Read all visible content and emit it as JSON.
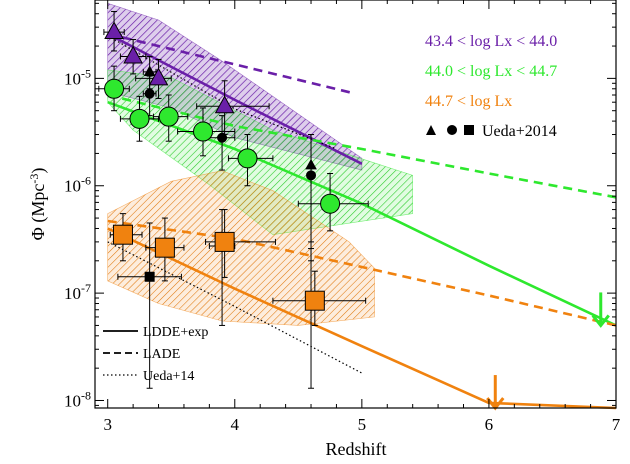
{
  "chart_data": {
    "type": "scatter",
    "xlabel": "Redshift",
    "ylabel_main": "Φ (Mpc",
    "ylabel_sup": "-3",
    "ylabel_close": ")",
    "xlim": [
      2.9,
      7.0
    ],
    "ylog": true,
    "ylim_log10": [
      -8.07,
      -4.27
    ],
    "x_ticks": [
      {
        "v": 3,
        "label": "3"
      },
      {
        "v": 4,
        "label": "4"
      },
      {
        "v": 5,
        "label": "5"
      },
      {
        "v": 6,
        "label": "6"
      },
      {
        "v": 7,
        "label": "7"
      }
    ],
    "y_ticks": [
      {
        "e": -5,
        "label": "10",
        "sup": "-5"
      },
      {
        "e": -6,
        "label": "10",
        "sup": "-6"
      },
      {
        "e": -7,
        "label": "10",
        "sup": "-7"
      },
      {
        "e": -8,
        "label": "10",
        "sup": "-8"
      }
    ],
    "legend_bins": [
      {
        "label": "43.4 < log Lx < 44.0",
        "color": "#6a1fa8"
      },
      {
        "label": "44.0 < log Lx < 44.7",
        "color": "#2ee82e"
      },
      {
        "label": "44.7 < log Lx",
        "color": "#f0820f"
      }
    ],
    "legend_ueda": {
      "label": "Ueda+2014"
    },
    "legend_lines": [
      {
        "label": "LDDE+exp",
        "dash": "solid"
      },
      {
        "label": "LADE",
        "dash": "dashed"
      },
      {
        "label": "Ueda+14",
        "dash": "dotted"
      }
    ],
    "series": [
      {
        "color": "#6a1fa8",
        "marker": "triangle",
        "points": [
          {
            "x": 3.05,
            "y": 2.7e-05,
            "xerr": [
              0.08,
              0.08
            ],
            "yerr": [
              1.8e-05,
              4.2e-05
            ]
          },
          {
            "x": 3.2,
            "y": 1.6e-05,
            "xerr": [
              0.1,
              0.1
            ],
            "yerr": [
              1.1e-05,
              2.3e-05
            ]
          },
          {
            "x": 3.4,
            "y": 1e-05,
            "xerr": [
              0.18,
              0.1
            ],
            "yerr": [
              6.5e-06,
              1.5e-05
            ]
          },
          {
            "x": 3.92,
            "y": 5.5e-06,
            "xerr": [
              0.22,
              0.35
            ],
            "yerr": [
              3e-06,
              9.5e-06
            ]
          }
        ],
        "model_ldde": [
          [
            3.0,
            2.6e-05
          ],
          [
            4.0,
            6.3e-06
          ],
          [
            5.0,
            1.6e-06
          ]
        ],
        "model_lade": [
          [
            3.0,
            2.6e-05
          ],
          [
            4.0,
            1.35e-05
          ],
          [
            4.95,
            7.2e-06
          ]
        ],
        "model_ueda": [
          [
            3.0,
            2.5e-05
          ],
          [
            4.0,
            5.2e-06
          ],
          [
            4.8,
            2.2e-06
          ]
        ],
        "band": [
          [
            3.0,
            5e-05
          ],
          [
            3.4,
            3.5e-05
          ],
          [
            3.9,
            1.45e-05
          ],
          [
            5.0,
            1.8e-06
          ],
          [
            5.0,
            1.4e-06
          ],
          [
            4.0,
            2.8e-06
          ],
          [
            3.5,
            5.3e-06
          ],
          [
            3.0,
            7.5e-06
          ]
        ]
      },
      {
        "color": "#2ee82e",
        "marker": "circle",
        "points": [
          {
            "x": 3.05,
            "y": 8e-06,
            "xerr": [
              0.12,
              0.12
            ],
            "yerr": [
              5e-06,
              1.3e-05
            ]
          },
          {
            "x": 3.25,
            "y": 4.2e-06,
            "xerr": [
              0.15,
              0.15
            ],
            "yerr": [
              2.6e-06,
              6.8e-06
            ]
          },
          {
            "x": 3.48,
            "y": 4.4e-06,
            "xerr": [
              0.12,
              0.15
            ],
            "yerr": [
              2.6e-06,
              7e-06
            ]
          },
          {
            "x": 3.75,
            "y": 3.2e-06,
            "xerr": [
              0.2,
              0.25
            ],
            "yerr": [
              1.9e-06,
              5.3e-06
            ]
          },
          {
            "x": 4.1,
            "y": 1.8e-06,
            "xerr": [
              0.15,
              0.2
            ],
            "yerr": [
              1e-06,
              3e-06
            ]
          },
          {
            "x": 4.75,
            "y": 6.8e-07,
            "xerr": [
              0.25,
              0.3
            ],
            "yerr": [
              3.8e-07,
              1.3e-06
            ]
          }
        ],
        "model_ldde": [
          [
            3.0,
            6e-06
          ],
          [
            4.0,
            2.2e-06
          ],
          [
            5.0,
            6.8e-07
          ],
          [
            6.0,
            1.8e-07
          ],
          [
            7.0,
            5e-08
          ]
        ],
        "model_lade": [
          [
            3.0,
            7e-06
          ],
          [
            4.0,
            3.6e-06
          ],
          [
            5.0,
            2.2e-06
          ],
          [
            6.0,
            1.3e-06
          ],
          [
            7.0,
            7.8e-07
          ]
        ],
        "band": [
          [
            3.0,
            1.2e-05
          ],
          [
            3.5,
            1.02e-05
          ],
          [
            4.3,
            3.3e-06
          ],
          [
            5.4,
            1.25e-06
          ],
          [
            5.4,
            5.5e-07
          ],
          [
            4.3,
            3.5e-07
          ],
          [
            3.8,
            1.02e-06
          ],
          [
            3.2,
            3.3e-06
          ],
          [
            3.0,
            6e-06
          ]
        ],
        "upper_limit": {
          "x": 6.88,
          "y": 5e-08
        }
      },
      {
        "color": "#f0820f",
        "marker": "square",
        "points": [
          {
            "x": 3.12,
            "y": 3.5e-07,
            "xerr": [
              0.1,
              0.15
            ],
            "yerr": [
              2e-07,
              5.5e-07
            ]
          },
          {
            "x": 3.45,
            "y": 2.65e-07,
            "xerr": [
              0.15,
              0.15
            ],
            "yerr": [
              1.3e-07,
              5e-07
            ]
          },
          {
            "x": 3.92,
            "y": 3e-07,
            "xerr": [
              0.15,
              0.4
            ],
            "yerr": [
              1.4e-07,
              6e-07
            ]
          },
          {
            "x": 4.63,
            "y": 8.5e-08,
            "xerr": [
              0.33,
              0.4
            ],
            "yerr": [
              5e-08,
              1.6e-07
            ]
          }
        ],
        "model_ldde": [
          [
            3.0,
            4e-07
          ],
          [
            4.0,
            1.1e-07
          ],
          [
            5.0,
            3.2e-08
          ],
          [
            6.0,
            9.5e-09
          ],
          [
            7.0,
            2.6e-09
          ]
        ],
        "model_lade": [
          [
            3.0,
            4.7e-07
          ],
          [
            4.0,
            3.2e-07
          ],
          [
            5.0,
            1.75e-07
          ],
          [
            6.0,
            9.5e-08
          ],
          [
            7.0,
            5e-08
          ]
        ],
        "model_ueda": [
          [
            3.0,
            3e-07
          ],
          [
            4.0,
            7.5e-08
          ],
          [
            5.0,
            1.8e-08
          ]
        ],
        "band": [
          [
            3.0,
            5.5e-07
          ],
          [
            3.5,
            1.1e-06
          ],
          [
            3.9,
            1.38e-06
          ],
          [
            4.3,
            9e-07
          ],
          [
            4.9,
            3e-07
          ],
          [
            5.1,
            1.7e-07
          ],
          [
            5.1,
            6e-08
          ],
          [
            4.5,
            5e-08
          ],
          [
            3.9,
            5.5e-08
          ],
          [
            3.4,
            8e-08
          ],
          [
            3.0,
            1.3e-07
          ]
        ],
        "upper_limit": {
          "x": 6.05,
          "y": 8.5e-09
        }
      },
      {
        "color": "#000000",
        "label": "Ueda+2014 (black markers)",
        "points_triangle": [
          {
            "x": 3.33,
            "y": 1.15e-05,
            "xerr": [
              0.05,
              0.05
            ],
            "yerr": [
              8e-06,
              1.6e-05
            ]
          },
          {
            "x": 4.6,
            "y": 1.55e-06,
            "xerr": [
              0.0,
              0.0
            ],
            "yerr": [
              3e-07,
              3e-06
            ]
          }
        ],
        "points_circle": [
          {
            "x": 3.33,
            "y": 7.2e-06,
            "xerr": [
              0.05,
              0.05
            ],
            "yerr": [
              4.5e-06,
              1.05e-05
            ]
          },
          {
            "x": 3.9,
            "y": 2.8e-06,
            "xerr": [
              0.15,
              0.1
            ],
            "yerr": [
              1.4e-06,
              4.5e-06
            ]
          },
          {
            "x": 4.6,
            "y": 1.25e-06,
            "xerr": [
              0.0,
              0.0
            ],
            "yerr": [
              2e-07,
              3e-06
            ]
          }
        ],
        "points_square": [
          {
            "x": 3.33,
            "y": 1.42e-07,
            "xerr": [
              0.25,
              0.25
            ],
            "yerr": [
              1.3e-08,
              4.5e-07
            ]
          },
          {
            "x": 3.9,
            "y": 2.75e-07,
            "xerr": [
              0.1,
              0.1
            ],
            "yerr": [
              5e-08,
              6e-07
            ]
          },
          {
            "x": 4.6,
            "y": 8.2e-08,
            "xerr": [
              0.0,
              0.0
            ],
            "yerr": [
              1.3e-08,
              2.6e-07
            ]
          }
        ]
      }
    ]
  }
}
